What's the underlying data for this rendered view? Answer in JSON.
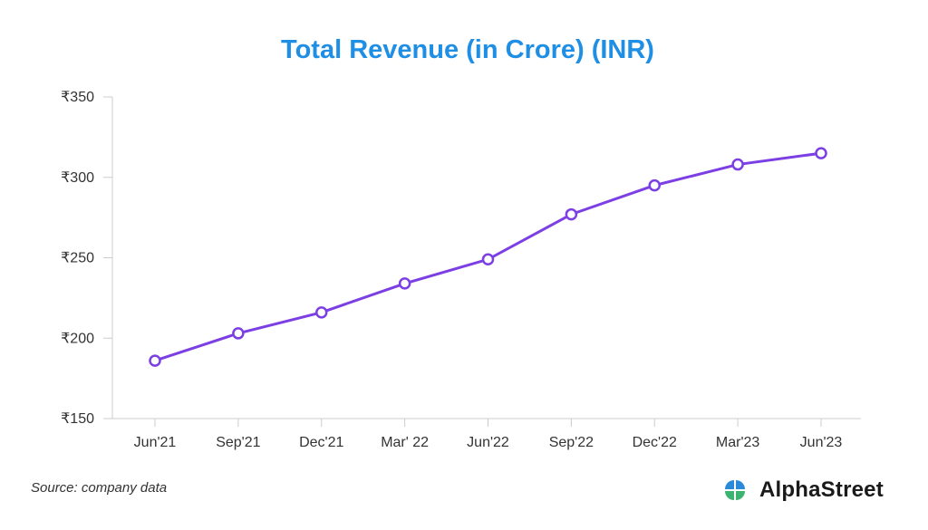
{
  "chart_data": {
    "type": "line",
    "title": "Total Revenue (in Crore) (INR)",
    "categories": [
      "Jun'21",
      "Sep'21",
      "Dec'21",
      "Mar' 22",
      "Jun'22",
      "Sep'22",
      "Dec'22",
      "Mar'23",
      "Jun'23"
    ],
    "series": [
      {
        "values": [
          186,
          203,
          216,
          234,
          249,
          277,
          295,
          308,
          315
        ]
      }
    ],
    "yticks": [
      150,
      200,
      250,
      300,
      350
    ],
    "ytick_labels": [
      "₹150",
      "₹200",
      "₹250",
      "₹300",
      "₹350"
    ],
    "ylim": [
      150,
      350
    ],
    "grid": false,
    "colors": {
      "title": "#1f8fe5",
      "line": "#7b3fe4",
      "axis": "#cccccc"
    }
  },
  "footer": {
    "source": "Source: company data",
    "brand_name": "AlphaStreet",
    "brand_icon": "alphastreet-logo-icon",
    "brand_colors": [
      "#2a8ad9",
      "#3cb371"
    ]
  }
}
